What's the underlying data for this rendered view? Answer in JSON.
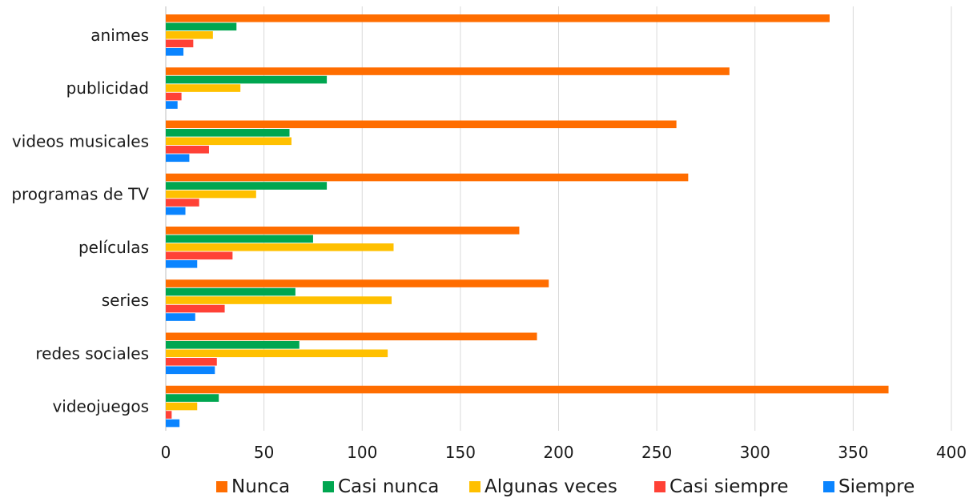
{
  "chart_data": {
    "type": "bar",
    "orientation": "horizontal",
    "categories": [
      "animes",
      "publicidad",
      "videos musicales",
      "programas de TV",
      "películas",
      "series",
      "redes sociales",
      "videojuegos"
    ],
    "series": [
      {
        "name": "Nunca",
        "color": "#ff6d00",
        "values": [
          338,
          287,
          260,
          266,
          180,
          195,
          189,
          368
        ]
      },
      {
        "name": "Casi nunca",
        "color": "#00a650",
        "values": [
          36,
          82,
          63,
          82,
          75,
          66,
          68,
          27
        ]
      },
      {
        "name": "Algunas veces",
        "color": "#ffc000",
        "values": [
          24,
          38,
          64,
          46,
          116,
          115,
          113,
          16
        ]
      },
      {
        "name": "Casi siempre",
        "color": "#ff4136",
        "values": [
          14,
          8,
          22,
          17,
          34,
          30,
          26,
          3
        ]
      },
      {
        "name": "Siempre",
        "color": "#0a84ff",
        "values": [
          9,
          6,
          12,
          10,
          16,
          15,
          25,
          7
        ]
      }
    ],
    "xlim": [
      0,
      400
    ],
    "xticks": [
      "0",
      "50",
      "100",
      "150",
      "200",
      "250",
      "300",
      "350",
      "400"
    ],
    "grid": "vertical",
    "legend_position": "bottom"
  }
}
